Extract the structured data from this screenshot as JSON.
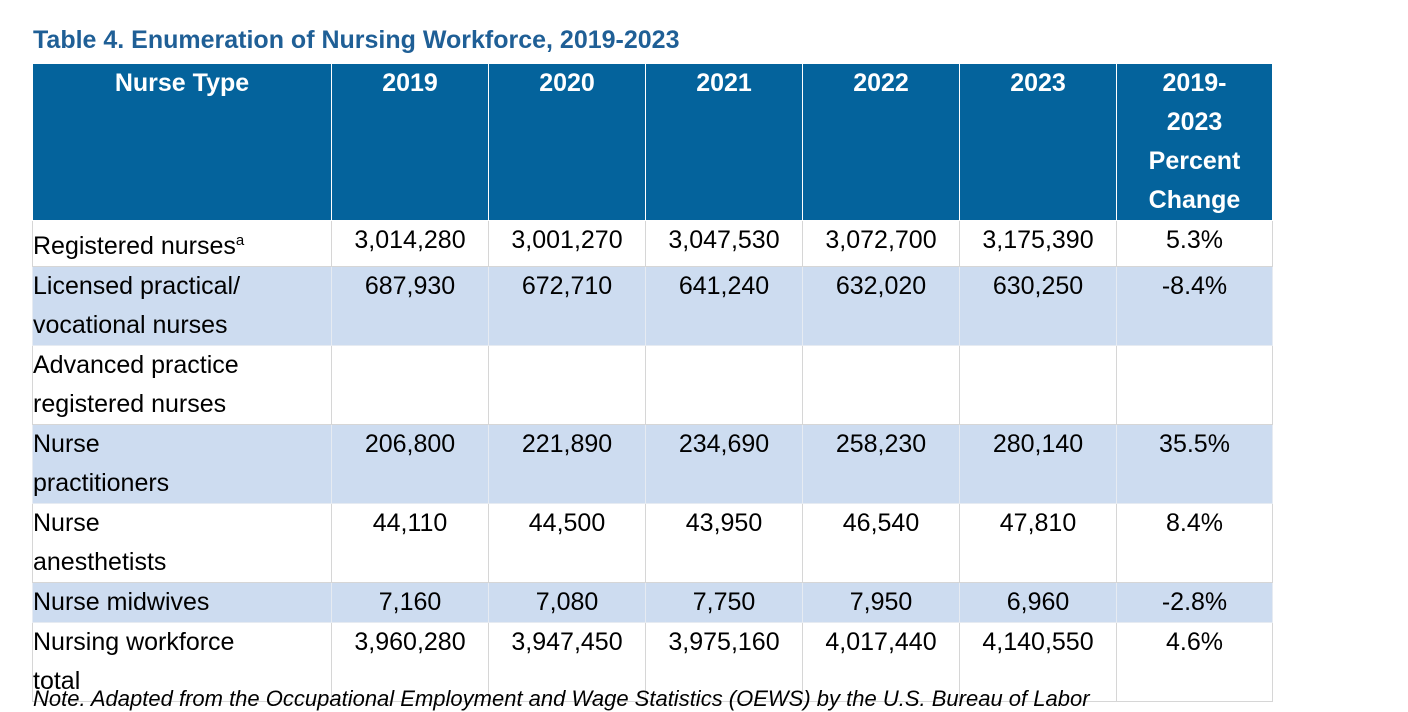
{
  "title": "Table 4. Enumeration of Nursing Workforce, 2019-2023",
  "header": {
    "nurse_type": "Nurse Type",
    "y2019": "2019",
    "y2020": "2020",
    "y2021": "2021",
    "y2022": "2022",
    "y2023": "2023",
    "pct_line1": "2019-",
    "pct_line2": "2023",
    "pct_line3": "Percent",
    "pct_line4": "Change"
  },
  "rows": {
    "rn": {
      "label": "Registered nurses",
      "sup": "a",
      "v2019": "3,014,280",
      "v2020": "3,001,270",
      "v2021": "3,047,530",
      "v2022": "3,072,700",
      "v2023": "3,175,390",
      "pct": "5.3%"
    },
    "lpn": {
      "label_line1": "Licensed practical/",
      "label_line2": "vocational nurses",
      "v2019": "687,930",
      "v2020": "672,710",
      "v2021": "641,240",
      "v2022": "632,020",
      "v2023": "630,250",
      "pct": "-8.4%"
    },
    "aprn": {
      "label_line1": "Advanced practice",
      "label_line2": "registered nurses"
    },
    "np": {
      "label_line1": "Nurse",
      "label_line2": "practitioners",
      "v2019": "206,800",
      "v2020": "221,890",
      "v2021": "234,690",
      "v2022": "258,230",
      "v2023": "280,140",
      "pct": "35.5%"
    },
    "na": {
      "label_line1": "Nurse",
      "label_line2": "anesthetists",
      "v2019": "44,110",
      "v2020": "44,500",
      "v2021": "43,950",
      "v2022": "46,540",
      "v2023": "47,810",
      "pct": "8.4%"
    },
    "nm": {
      "label": "Nurse midwives",
      "v2019": "7,160",
      "v2020": "7,080",
      "v2021": "7,750",
      "v2022": "7,950",
      "v2023": "6,960",
      "pct": "-2.8%"
    },
    "total": {
      "label_line1": "Nursing workforce",
      "label_line2": "total",
      "v2019": "3,960,280",
      "v2020": "3,947,450",
      "v2021": "3,975,160",
      "v2022": "4,017,440",
      "v2023": "4,140,550",
      "pct": "4.6%"
    }
  },
  "note": "Note. Adapted from the Occupational Employment and Wage Statistics (OEWS) by the U.S. Bureau of Labor"
}
